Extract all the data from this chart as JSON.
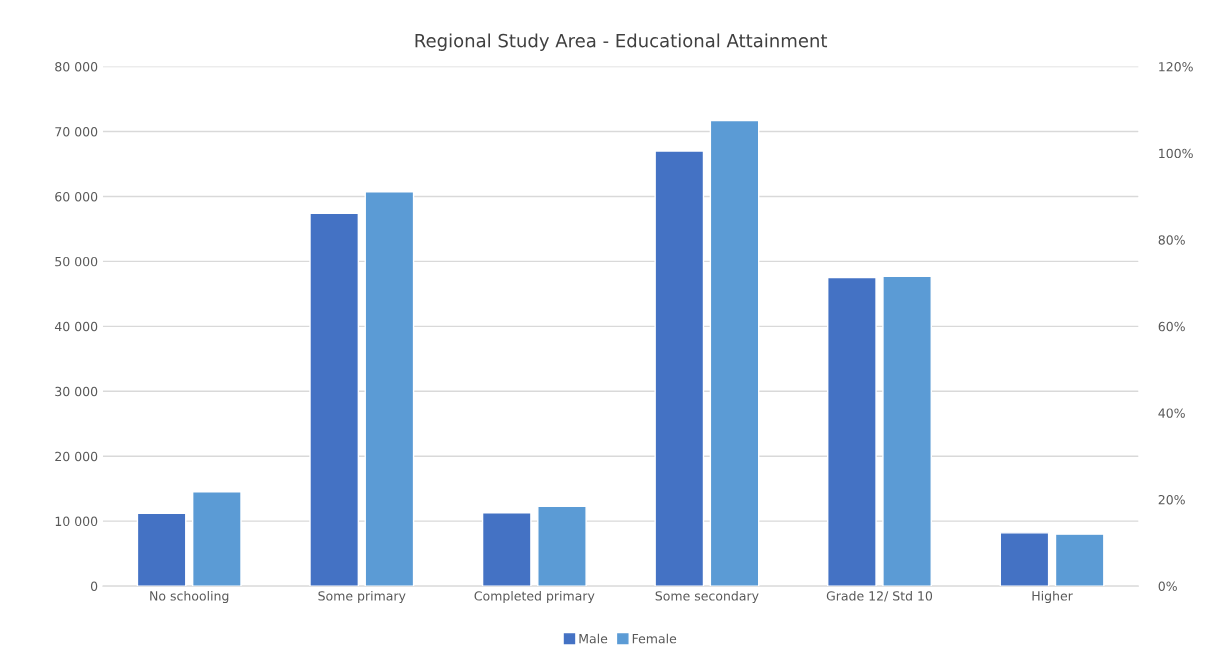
{
  "chart_data": {
    "type": "bar",
    "title": "Regional Study Area - Educational Attainment",
    "categories": [
      "No schooling",
      "Some primary",
      "Completed primary",
      "Some secondary",
      "Grade 12/ Std 10",
      "Higher"
    ],
    "series": [
      {
        "name": "Male",
        "color": "#4472c4",
        "values": [
          11200,
          57400,
          11300,
          67000,
          47500,
          8200
        ]
      },
      {
        "name": "Female",
        "color": "#5b9bd5",
        "values": [
          14500,
          60700,
          12300,
          71700,
          47700,
          8000
        ]
      }
    ],
    "ylim": [
      0,
      80000
    ],
    "yticks": [
      {
        "value": 0,
        "label": "0"
      },
      {
        "value": 10000,
        "label": "10 000"
      },
      {
        "value": 20000,
        "label": "20 000"
      },
      {
        "value": 30000,
        "label": "30 000"
      },
      {
        "value": 40000,
        "label": "40 000"
      },
      {
        "value": 50000,
        "label": "50 000"
      },
      {
        "value": 60000,
        "label": "60 000"
      },
      {
        "value": 70000,
        "label": "70 000"
      },
      {
        "value": 80000,
        "label": "80 000"
      }
    ],
    "y2lim": [
      0,
      120
    ],
    "y2ticks": [
      {
        "value": 0,
        "label": "0%"
      },
      {
        "value": 20,
        "label": "20%"
      },
      {
        "value": 40,
        "label": "40%"
      },
      {
        "value": 60,
        "label": "60%"
      },
      {
        "value": 80,
        "label": "80%"
      },
      {
        "value": 100,
        "label": "100%"
      },
      {
        "value": 120,
        "label": "120%"
      }
    ],
    "grid": "y",
    "legend": "bottom"
  }
}
